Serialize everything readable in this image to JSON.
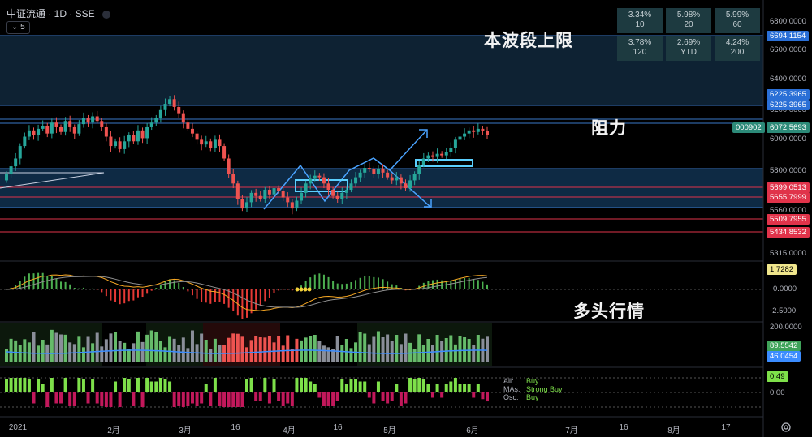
{
  "header": {
    "symbol": "中证流通 · 1D · SSE",
    "interval_button": "5"
  },
  "performance": [
    {
      "pct": "3.34%",
      "period": "10"
    },
    {
      "pct": "5.98%",
      "period": "20"
    },
    {
      "pct": "5.99%",
      "period": "60"
    },
    {
      "pct": "3.78%",
      "period": "120"
    },
    {
      "pct": "2.69%",
      "period": "YTD"
    },
    {
      "pct": "4.24%",
      "period": "200"
    }
  ],
  "annotations": {
    "upper_limit": "本波段上限",
    "resistance": "阻力",
    "bull_market": "多头行情"
  },
  "price_axis": {
    "ticks": [
      "6800.0000",
      "6600.0000",
      "6400.0000",
      "6200.0000",
      "6000.0000",
      "5800.0000",
      "5560.0000",
      "5315.0000"
    ],
    "tags": [
      {
        "text": "6694.1154",
        "color": "#2a6fd6"
      },
      {
        "text": "6225.3965",
        "color": "#2a6fd6"
      },
      {
        "text": "6225.3965",
        "color": "#2a6fd6"
      },
      {
        "text": "6072.5693",
        "color": "#2c8a78"
      },
      {
        "text": "5699.0513",
        "color": "#e0334a"
      },
      {
        "text": "5655.7999",
        "color": "#e0334a"
      },
      {
        "text": "5509.7955",
        "color": "#e0334a"
      },
      {
        "text": "5434.8532",
        "color": "#e0334a"
      }
    ],
    "symbol_code": "000902"
  },
  "macd_axis": {
    "ticks": [
      "2.5000",
      "0.0000",
      "-2.5000"
    ],
    "current": "1.7282"
  },
  "volume_axis": {
    "ticks": [
      "200.0000"
    ],
    "current_a": "89.5542",
    "current_b": "46.0454"
  },
  "rating_axis": {
    "ticks": [
      "0.00"
    ],
    "current": "0.49"
  },
  "rating_legend": [
    {
      "key": "All:",
      "value": "Buy"
    },
    {
      "key": "MAs:",
      "value": "Strong Buy"
    },
    {
      "key": "Osc:",
      "value": "Buy"
    }
  ],
  "time_axis": [
    "2021",
    "2月",
    "3月",
    "16",
    "4月",
    "16",
    "5月",
    "6月",
    "7月",
    "16",
    "8月",
    "17"
  ],
  "chart_data": {
    "type": "candlestick",
    "x_labels": [
      "2021",
      "2月",
      "3月",
      "16",
      "4月",
      "16",
      "5月",
      "6月",
      "7月",
      "16",
      "8月",
      "17"
    ],
    "y_ticks": [
      6800,
      6600,
      6400,
      6200,
      6000,
      5800,
      5560,
      5315
    ],
    "ylim": [
      5230,
      6900
    ],
    "last_close": 6072.5693,
    "horizontal_levels": [
      6694.1154,
      6225.3965,
      5699.0513,
      5655.7999,
      5509.7955,
      5434.8532
    ],
    "closes": [
      5820,
      5870,
      5920,
      6000,
      6060,
      6100,
      6070,
      6110,
      6130,
      6080,
      6150,
      6120,
      6090,
      6160,
      6120,
      6080,
      6140,
      6180,
      6150,
      6190,
      6160,
      6120,
      6060,
      6000,
      6030,
      5980,
      6030,
      6070,
      6030,
      6100,
      6050,
      6120,
      6150,
      6180,
      6230,
      6270,
      6300,
      6250,
      6210,
      6150,
      6110,
      6080,
      6040,
      6010,
      6030,
      5990,
      6040,
      6000,
      5920,
      5820,
      5760,
      5660,
      5600,
      5640,
      5700,
      5680,
      5660,
      5720,
      5690,
      5730,
      5710,
      5670,
      5640,
      5600,
      5650,
      5700,
      5760,
      5790,
      5810,
      5800,
      5760,
      5720,
      5680,
      5660,
      5700,
      5720,
      5760,
      5800,
      5830,
      5860,
      5850,
      5820,
      5850,
      5830,
      5800,
      5780,
      5800,
      5760,
      5730,
      5780,
      5820,
      5880,
      5920,
      5940,
      5930,
      5950,
      5940,
      5960,
      5990,
      6040,
      6060,
      6080,
      6100,
      6090,
      6110,
      6095,
      6072
    ],
    "opens": [
      5780,
      5820,
      5870,
      5920,
      6000,
      6060,
      6100,
      6070,
      6110,
      6130,
      6080,
      6150,
      6120,
      6090,
      6160,
      6120,
      6080,
      6140,
      6180,
      6150,
      6190,
      6160,
      6120,
      6060,
      6000,
      6030,
      5980,
      6030,
      6070,
      6030,
      6100,
      6050,
      6120,
      6150,
      6180,
      6230,
      6270,
      6300,
      6250,
      6210,
      6150,
      6110,
      6080,
      6040,
      6010,
      6030,
      5990,
      6040,
      6000,
      5920,
      5820,
      5760,
      5660,
      5600,
      5640,
      5700,
      5680,
      5660,
      5720,
      5690,
      5730,
      5710,
      5670,
      5640,
      5600,
      5650,
      5700,
      5760,
      5790,
      5810,
      5800,
      5760,
      5720,
      5680,
      5660,
      5700,
      5720,
      5760,
      5800,
      5830,
      5860,
      5850,
      5820,
      5850,
      5830,
      5800,
      5780,
      5800,
      5760,
      5730,
      5780,
      5820,
      5880,
      5920,
      5940,
      5930,
      5950,
      5940,
      5960,
      5990,
      6040,
      6060,
      6080,
      6100,
      6090,
      6110,
      6095
    ]
  }
}
